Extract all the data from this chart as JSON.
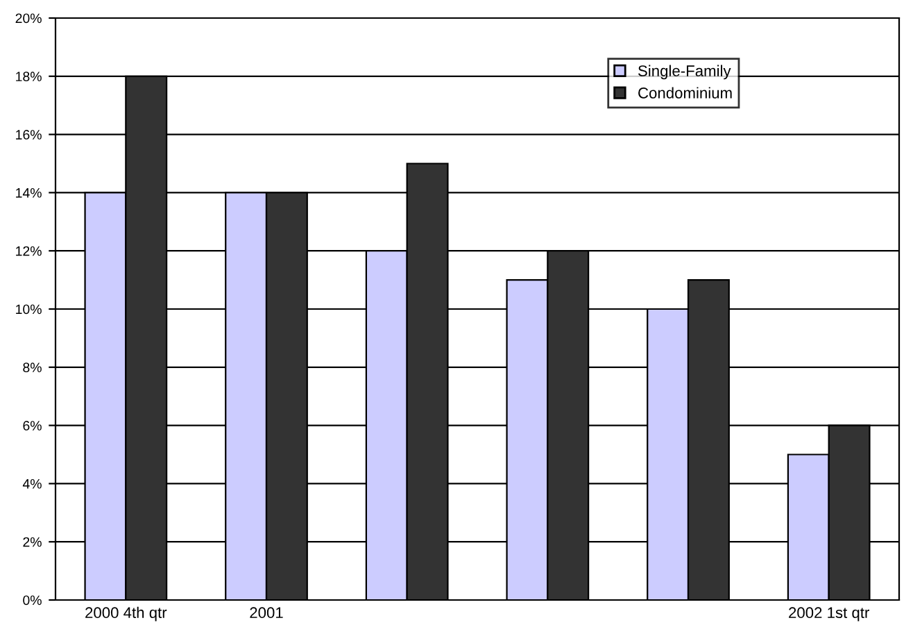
{
  "chart_data": {
    "type": "bar",
    "categories": [
      "2000 4th qtr",
      "2001",
      null,
      null,
      null,
      "2002 1st qtr"
    ],
    "series": [
      {
        "name": "Single-Family",
        "color": "#ccccff",
        "values": [
          14,
          14,
          12,
          11,
          10,
          5
        ]
      },
      {
        "name": "Condominium",
        "color": "#333333",
        "values": [
          18,
          14,
          15,
          12,
          11,
          6
        ]
      }
    ],
    "ylim": [
      0,
      20
    ],
    "yticks": [
      {
        "value": 0,
        "label": "0%"
      },
      {
        "value": 2,
        "label": "2%"
      },
      {
        "value": 4,
        "label": "4%"
      },
      {
        "value": 6,
        "label": "6%"
      },
      {
        "value": 8,
        "label": "8%"
      },
      {
        "value": 10,
        "label": "10%"
      },
      {
        "value": 12,
        "label": "12%"
      },
      {
        "value": 14,
        "label": "14%"
      },
      {
        "value": 16,
        "label": "16%"
      },
      {
        "value": 18,
        "label": "18%"
      },
      {
        "value": 20,
        "label": "20%"
      }
    ],
    "grid": "y",
    "legend": "top right"
  }
}
